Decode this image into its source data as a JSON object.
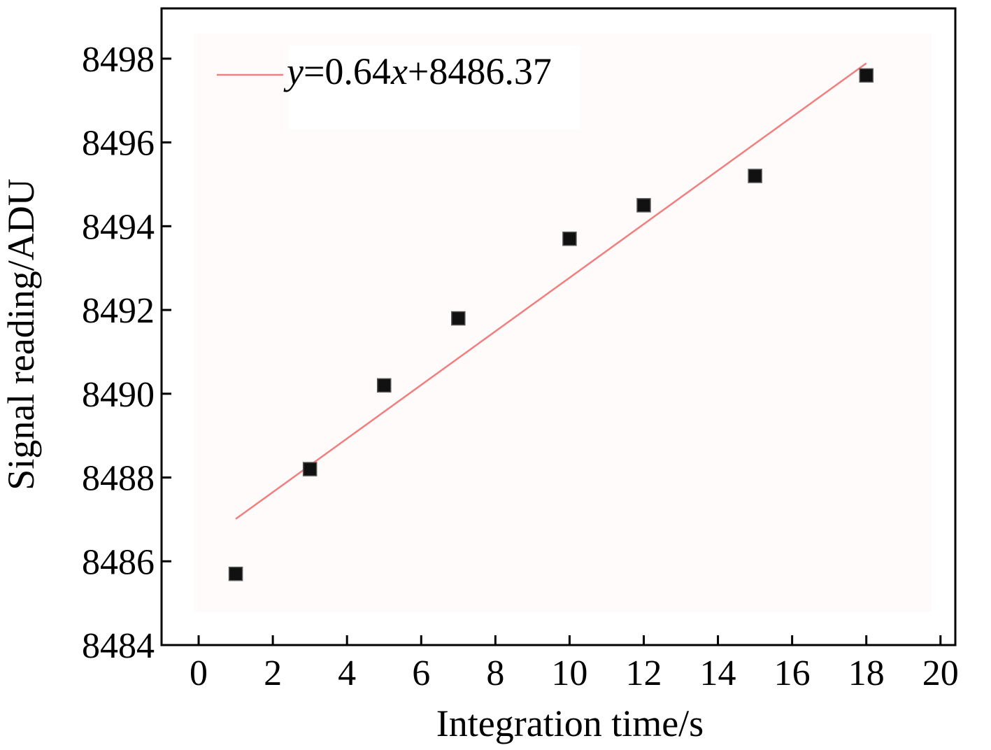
{
  "chart_data": {
    "type": "scatter",
    "xlabel": "Integration time/s",
    "ylabel": "Signal reading/ADU",
    "xlim": [
      -1,
      20.4
    ],
    "ylim": [
      8484,
      8499.2
    ],
    "xticks": [
      0,
      2,
      4,
      6,
      8,
      10,
      12,
      14,
      16,
      18,
      20
    ],
    "yticks": [
      8484,
      8486,
      8488,
      8490,
      8492,
      8494,
      8496,
      8498
    ],
    "grid": false,
    "legend_position": "top-left",
    "series": [
      {
        "kind": "points",
        "marker": "square",
        "color": "#111111",
        "x": [
          1,
          3,
          5,
          7,
          10,
          12,
          15,
          18
        ],
        "y": [
          8485.7,
          8488.2,
          8490.2,
          8491.8,
          8493.7,
          8494.5,
          8495.2,
          8497.6
        ]
      },
      {
        "kind": "fit-line",
        "color": "#f08080",
        "equation": {
          "y": "y",
          "eq": "=0.64",
          "x": "x",
          "rest": "+8486.37"
        },
        "slope": 0.64,
        "intercept": 8486.37,
        "x_range": [
          1,
          18
        ]
      }
    ]
  }
}
